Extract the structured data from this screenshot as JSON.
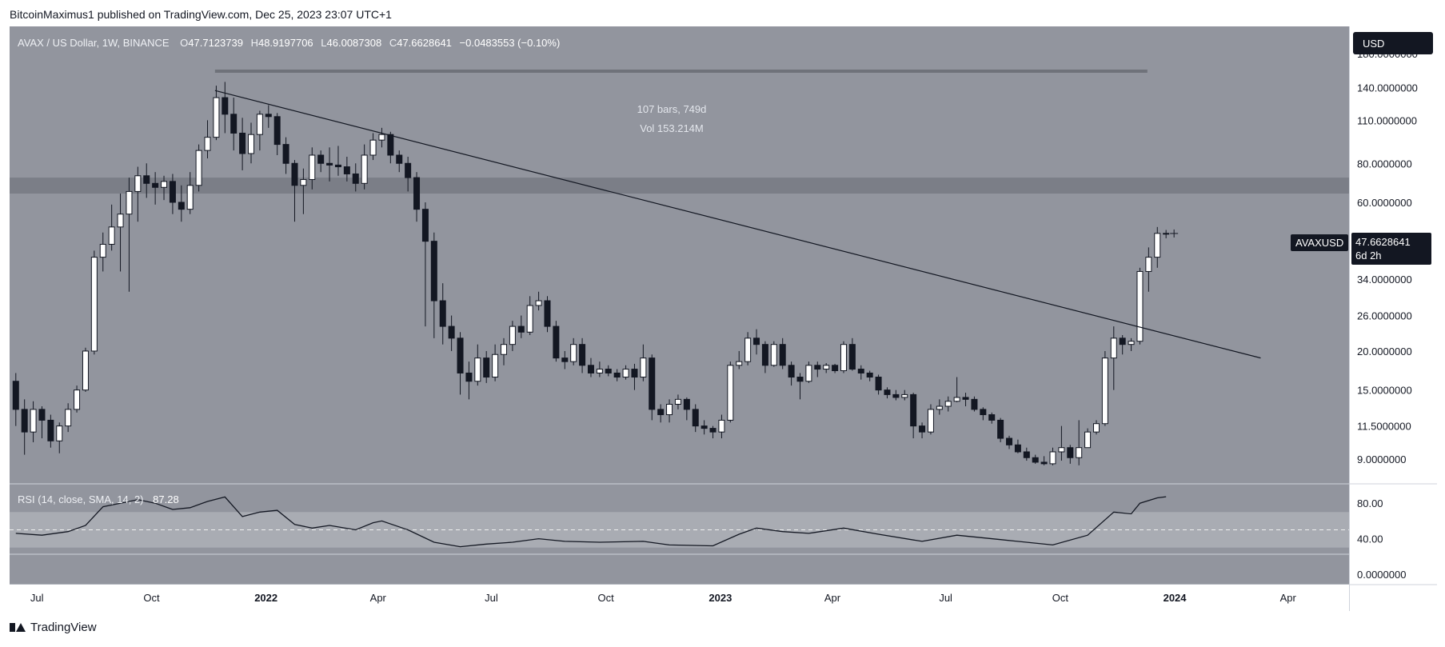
{
  "header": {
    "publisher_line": "BitcoinMaximus1 published on TradingView.com, Dec 25, 2023 23:07 UTC+1"
  },
  "footer": {
    "brand": "TradingView"
  },
  "legend": {
    "symbol": "AVAX / US Dollar, 1W, BINANCE",
    "o_label": "O",
    "o_value": "47.7123739",
    "h_label": "H",
    "h_value": "48.9197706",
    "l_label": "L",
    "l_value": "46.0087308",
    "c_label": "C",
    "c_value": "47.6628641",
    "change": "−0.0483553 (−0.10%)"
  },
  "rsi_legend": {
    "label": "RSI (14, close, SMA, 14, 2)",
    "value": "87.28"
  },
  "measure": {
    "bars": "107 bars, 749d",
    "vol": "Vol 153.214M"
  },
  "currency_button": "USD",
  "ticker_tag": "AVAXUSD",
  "price_tag": {
    "price": "47.6628641",
    "countdown": "6d 2h"
  },
  "colors": {
    "panel_bg": "#92959e",
    "up_candle": "#ffffff",
    "down_candle": "#131722",
    "resistance_zone": "#7b7e87",
    "rsi_band": "#a9acb3"
  },
  "chart_data": {
    "type": "candlestick",
    "symbol": "AVAXUSD",
    "timeframe": "1W",
    "y_scale": "log",
    "price_axis_ticks": [
      "180.0000000",
      "140.0000000",
      "110.0000000",
      "80.0000000",
      "60.0000000",
      "34.0000000",
      "26.0000000",
      "20.0000000",
      "15.0000000",
      "11.5000000",
      "9.0000000"
    ],
    "rsi_axis_ticks": [
      "80.00",
      "40.00",
      "0.0000000"
    ],
    "x_tick_labels": [
      "Jul",
      "Oct",
      "2022",
      "Apr",
      "Jul",
      "Oct",
      "2023",
      "Apr",
      "Jul",
      "Oct",
      "2024",
      "Apr"
    ],
    "x_tick_dates": [
      "2021-07-01",
      "2021-10-01",
      "2022-01-01",
      "2022-04-01",
      "2022-07-01",
      "2022-10-01",
      "2023-01-01",
      "2023-04-01",
      "2023-07-01",
      "2023-10-01",
      "2024-01-01",
      "2024-04-01"
    ],
    "x_range": [
      "2021-06-09",
      "2024-05-20"
    ],
    "price_range": [
      7.5,
      220
    ],
    "resistance_zone": [
      64,
      72
    ],
    "descending_trendline": [
      {
        "date": "2021-11-21",
        "price": 137
      },
      {
        "date": "2024-03-10",
        "price": 19
      }
    ],
    "measure_line": {
      "from": "2021-11-21",
      "to": "2023-12-10",
      "price": 158
    },
    "candles": [
      [
        "2021-06-14",
        16,
        13,
        17,
        11.5
      ],
      [
        "2021-06-21",
        13,
        11,
        14,
        9.3
      ],
      [
        "2021-06-28",
        11,
        13,
        13.8,
        10.2
      ],
      [
        "2021-07-05",
        13,
        12,
        13.3,
        10.5
      ],
      [
        "2021-07-12",
        12,
        10.3,
        12.5,
        9.8
      ],
      [
        "2021-07-19",
        10.3,
        11.5,
        11.8,
        9.4
      ],
      [
        "2021-07-26",
        11.5,
        13,
        13.6,
        11
      ],
      [
        "2021-08-02",
        13,
        15,
        15.5,
        12.7
      ],
      [
        "2021-08-09",
        15,
        20,
        20.5,
        14.8
      ],
      [
        "2021-08-16",
        20,
        40,
        42,
        19.5
      ],
      [
        "2021-08-23",
        40,
        44,
        48,
        36
      ],
      [
        "2021-08-30",
        44,
        50,
        59,
        42
      ],
      [
        "2021-09-06",
        50,
        55,
        64,
        36
      ],
      [
        "2021-09-13",
        55,
        65,
        72,
        31
      ],
      [
        "2021-09-20",
        65,
        73,
        78,
        52
      ],
      [
        "2021-09-27",
        73,
        69,
        80,
        62
      ],
      [
        "2021-10-04",
        69,
        67,
        75,
        59
      ],
      [
        "2021-10-11",
        67,
        70,
        73,
        61
      ],
      [
        "2021-10-18",
        70,
        60,
        74,
        55
      ],
      [
        "2021-10-25",
        60,
        57,
        68,
        52
      ],
      [
        "2021-11-01",
        57,
        68,
        75,
        55
      ],
      [
        "2021-11-08",
        68,
        88,
        92,
        65
      ],
      [
        "2021-11-15",
        88,
        97,
        110,
        83
      ],
      [
        "2021-11-22",
        97,
        130,
        142,
        95
      ],
      [
        "2021-11-29",
        130,
        115,
        146,
        100
      ],
      [
        "2021-12-06",
        115,
        100,
        130,
        88
      ],
      [
        "2021-12-13",
        100,
        86,
        112,
        76
      ],
      [
        "2021-12-20",
        86,
        99,
        108,
        80
      ],
      [
        "2021-12-27",
        99,
        115,
        118,
        88
      ],
      [
        "2022-01-03",
        115,
        113,
        123,
        104
      ],
      [
        "2022-01-10",
        113,
        92,
        116,
        85
      ],
      [
        "2022-01-17",
        92,
        80,
        97,
        74
      ],
      [
        "2022-01-24",
        80,
        68,
        82,
        52
      ],
      [
        "2022-01-31",
        68,
        71,
        77,
        55
      ],
      [
        "2022-02-07",
        71,
        85,
        90,
        66
      ],
      [
        "2022-02-14",
        85,
        80,
        88,
        75
      ],
      [
        "2022-02-21",
        80,
        79,
        90,
        70
      ],
      [
        "2022-02-28",
        79,
        78,
        91,
        73
      ],
      [
        "2022-03-07",
        78,
        74,
        84,
        70
      ],
      [
        "2022-03-14",
        74,
        69,
        80,
        65
      ],
      [
        "2022-03-21",
        69,
        85,
        92,
        66
      ],
      [
        "2022-03-28",
        85,
        95,
        100,
        82
      ],
      [
        "2022-04-04",
        95,
        99,
        104,
        90
      ],
      [
        "2022-04-11",
        99,
        85,
        101,
        80
      ],
      [
        "2022-04-18",
        85,
        80,
        88,
        75
      ],
      [
        "2022-04-25",
        80,
        72,
        84,
        65
      ],
      [
        "2022-05-02",
        72,
        57,
        75,
        52
      ],
      [
        "2022-05-09",
        57,
        45,
        60,
        24
      ],
      [
        "2022-05-16",
        45,
        29,
        48,
        22
      ],
      [
        "2022-05-23",
        29,
        24,
        33,
        21
      ],
      [
        "2022-05-30",
        24,
        22,
        26,
        20
      ],
      [
        "2022-06-06",
        22,
        17,
        23,
        14.5
      ],
      [
        "2022-06-13",
        17,
        16,
        18.5,
        14
      ],
      [
        "2022-06-20",
        16,
        19,
        21,
        15.5
      ],
      [
        "2022-06-27",
        19,
        16.5,
        20,
        15.8
      ],
      [
        "2022-07-04",
        16.5,
        19.5,
        21,
        16
      ],
      [
        "2022-07-11",
        19.5,
        21,
        22,
        18
      ],
      [
        "2022-07-18",
        21,
        24,
        25,
        20
      ],
      [
        "2022-07-25",
        24,
        23,
        26,
        22
      ],
      [
        "2022-08-01",
        23,
        28,
        30,
        22.5
      ],
      [
        "2022-08-08",
        28,
        29,
        31,
        27
      ],
      [
        "2022-08-15",
        29,
        24,
        30,
        23
      ],
      [
        "2022-08-22",
        24,
        19,
        25,
        18.5
      ],
      [
        "2022-08-29",
        19,
        18.5,
        20,
        17.5
      ],
      [
        "2022-09-05",
        18.5,
        21,
        22,
        18
      ],
      [
        "2022-09-12",
        21,
        18,
        22,
        17
      ],
      [
        "2022-09-19",
        18,
        17,
        19,
        16.5
      ],
      [
        "2022-09-26",
        17,
        17.5,
        18.5,
        16.5
      ],
      [
        "2022-10-03",
        17.5,
        17,
        18,
        16.6
      ],
      [
        "2022-10-10",
        17,
        16.5,
        17.5,
        16
      ],
      [
        "2022-10-17",
        16.5,
        17.5,
        18,
        16.2
      ],
      [
        "2022-10-24",
        17.5,
        16.5,
        18.2,
        15
      ],
      [
        "2022-10-31",
        16.5,
        19,
        21,
        16
      ],
      [
        "2022-11-07",
        19,
        13,
        19.5,
        12
      ],
      [
        "2022-11-14",
        13,
        12.5,
        13.5,
        11.8
      ],
      [
        "2022-11-21",
        12.5,
        13.5,
        14,
        11.8
      ],
      [
        "2022-11-28",
        13.5,
        14,
        14.5,
        13
      ],
      [
        "2022-12-05",
        14,
        13,
        14.2,
        12
      ],
      [
        "2022-12-12",
        13,
        11.5,
        13.5,
        11
      ],
      [
        "2022-12-19",
        11.5,
        11.3,
        12,
        10.8
      ],
      [
        "2022-12-26",
        11.3,
        11,
        11.5,
        10.5
      ],
      [
        "2023-01-02",
        11,
        12,
        12.5,
        10.5
      ],
      [
        "2023-01-09",
        12,
        18,
        18.5,
        11.8
      ],
      [
        "2023-01-16",
        18,
        18.5,
        20,
        17.5
      ],
      [
        "2023-01-23",
        18.5,
        22,
        23,
        18
      ],
      [
        "2023-01-30",
        22,
        21,
        23.5,
        19.5
      ],
      [
        "2023-02-06",
        21,
        18,
        21.5,
        17
      ],
      [
        "2023-02-13",
        18,
        21,
        21.5,
        17.8
      ],
      [
        "2023-02-20",
        21,
        18,
        22,
        17.5
      ],
      [
        "2023-02-27",
        18,
        16.5,
        18.5,
        15.5
      ],
      [
        "2023-03-06",
        16.5,
        16,
        17,
        14
      ],
      [
        "2023-03-13",
        16,
        18,
        18.5,
        15.8
      ],
      [
        "2023-03-20",
        18,
        17.5,
        18.5,
        16.5
      ],
      [
        "2023-03-27",
        17.5,
        18,
        18.3,
        17
      ],
      [
        "2023-04-03",
        18,
        17.3,
        18.2,
        17
      ],
      [
        "2023-04-10",
        17.3,
        21,
        21.5,
        17
      ],
      [
        "2023-04-17",
        21,
        17.5,
        22,
        17.3
      ],
      [
        "2023-04-24",
        17.5,
        17,
        18,
        16.2
      ],
      [
        "2023-05-01",
        17,
        16.5,
        17.3,
        16
      ],
      [
        "2023-05-08",
        16.5,
        15,
        16.8,
        14.5
      ],
      [
        "2023-05-15",
        15,
        14.5,
        15.3,
        14.1
      ],
      [
        "2023-05-22",
        14.5,
        14.2,
        15,
        13.9
      ],
      [
        "2023-05-29",
        14.2,
        14.5,
        15,
        13.9
      ],
      [
        "2023-06-05",
        14.5,
        11.5,
        14.7,
        10.5
      ],
      [
        "2023-06-12",
        11.5,
        11,
        11.8,
        10.5
      ],
      [
        "2023-06-19",
        11,
        13,
        13.5,
        10.8
      ],
      [
        "2023-06-26",
        13,
        13.3,
        14,
        12.5
      ],
      [
        "2023-07-03",
        13.3,
        13.8,
        14.3,
        12.8
      ],
      [
        "2023-07-10",
        13.8,
        14.2,
        16.5,
        13.7
      ],
      [
        "2023-07-17",
        14.2,
        14,
        14.7,
        13.3
      ],
      [
        "2023-07-24",
        14,
        13,
        14.3,
        12.8
      ],
      [
        "2023-07-31",
        13,
        12.5,
        13.2,
        12
      ],
      [
        "2023-08-07",
        12.5,
        12,
        12.7,
        11.7
      ],
      [
        "2023-08-14",
        12,
        10.5,
        12.2,
        10.2
      ],
      [
        "2023-08-21",
        10.5,
        10,
        10.7,
        9.7
      ],
      [
        "2023-08-28",
        10,
        9.5,
        10.4,
        9.4
      ],
      [
        "2023-09-04",
        9.5,
        9.1,
        9.8,
        8.9
      ],
      [
        "2023-09-11",
        9.1,
        8.8,
        9.3,
        8.7
      ],
      [
        "2023-09-18",
        8.8,
        8.7,
        9.2,
        8.6
      ],
      [
        "2023-09-25",
        8.7,
        9.5,
        9.8,
        8.6
      ],
      [
        "2023-10-02",
        9.5,
        9.8,
        11.5,
        8.9
      ],
      [
        "2023-10-09",
        9.8,
        9.1,
        10,
        8.7
      ],
      [
        "2023-10-16",
        9.1,
        9.8,
        12,
        8.6
      ],
      [
        "2023-10-23",
        9.8,
        11,
        11.3,
        9.8
      ],
      [
        "2023-10-30",
        11,
        11.7,
        12,
        10.8
      ],
      [
        "2023-11-06",
        11.7,
        19,
        20,
        11.5
      ],
      [
        "2023-11-13",
        19,
        22,
        24,
        15
      ],
      [
        "2023-11-20",
        22,
        21,
        22.5,
        19.5
      ],
      [
        "2023-11-27",
        21,
        21.5,
        22,
        20
      ],
      [
        "2023-12-04",
        21.5,
        36,
        37,
        21
      ],
      [
        "2023-12-11",
        36,
        40,
        43,
        31
      ],
      [
        "2023-12-18",
        40,
        47.7,
        50,
        37
      ],
      [
        "2023-12-25",
        47.7,
        47.66,
        48.92,
        46.0
      ]
    ],
    "rsi": {
      "label": "RSI (14, close, SMA, 14, 2)",
      "last": 87.28,
      "band": [
        30,
        70
      ],
      "midline": 50,
      "range": [
        0,
        100
      ],
      "points": [
        [
          "2021-06-14",
          46
        ],
        [
          "2021-07-05",
          44
        ],
        [
          "2021-07-26",
          48
        ],
        [
          "2021-08-09",
          55
        ],
        [
          "2021-08-23",
          76
        ],
        [
          "2021-09-06",
          80
        ],
        [
          "2021-09-20",
          84
        ],
        [
          "2021-10-04",
          80
        ],
        [
          "2021-10-18",
          73
        ],
        [
          "2021-11-01",
          75
        ],
        [
          "2021-11-15",
          82
        ],
        [
          "2021-11-29",
          87
        ],
        [
          "2021-12-13",
          65
        ],
        [
          "2021-12-27",
          70
        ],
        [
          "2022-01-10",
          72
        ],
        [
          "2022-01-24",
          56
        ],
        [
          "2022-02-07",
          52
        ],
        [
          "2022-02-21",
          55
        ],
        [
          "2022-03-14",
          50
        ],
        [
          "2022-03-28",
          58
        ],
        [
          "2022-04-04",
          60
        ],
        [
          "2022-04-25",
          50
        ],
        [
          "2022-05-16",
          36
        ],
        [
          "2022-06-06",
          31
        ],
        [
          "2022-06-27",
          34
        ],
        [
          "2022-07-18",
          36
        ],
        [
          "2022-08-08",
          40
        ],
        [
          "2022-08-29",
          37
        ],
        [
          "2022-09-26",
          36
        ],
        [
          "2022-10-31",
          37
        ],
        [
          "2022-11-21",
          33
        ],
        [
          "2022-12-26",
          32
        ],
        [
          "2023-01-16",
          45
        ],
        [
          "2023-01-30",
          52
        ],
        [
          "2023-02-20",
          48
        ],
        [
          "2023-03-13",
          46
        ],
        [
          "2023-04-10",
          52
        ],
        [
          "2023-05-08",
          45
        ],
        [
          "2023-06-12",
          37
        ],
        [
          "2023-07-10",
          44
        ],
        [
          "2023-08-14",
          39
        ],
        [
          "2023-09-25",
          33
        ],
        [
          "2023-10-23",
          44
        ],
        [
          "2023-11-13",
          70
        ],
        [
          "2023-11-27",
          68
        ],
        [
          "2023-12-04",
          80
        ],
        [
          "2023-12-18",
          86
        ],
        [
          "2023-12-25",
          87.28
        ]
      ]
    }
  }
}
